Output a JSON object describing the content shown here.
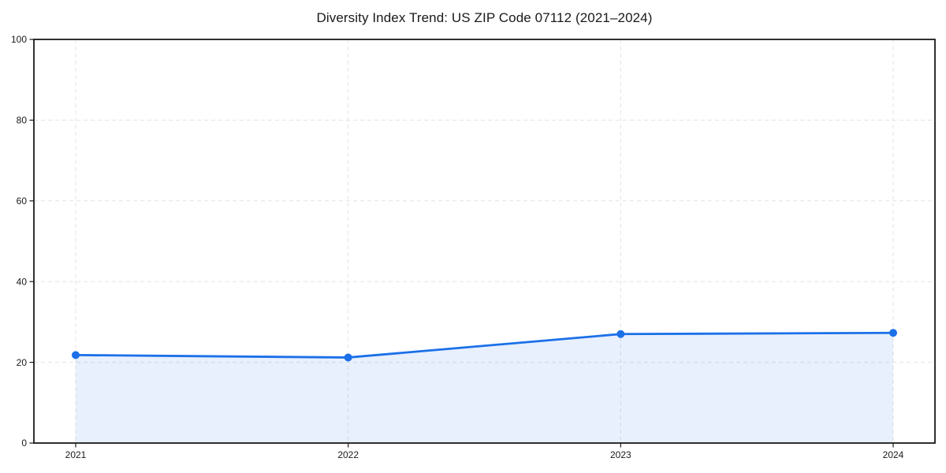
{
  "figure": {
    "background": "#ffffff"
  },
  "chart_data": {
    "type": "line",
    "title": "Diversity Index Trend: US ZIP Code 07112 (2021–2024)",
    "categories": [
      "2021",
      "2022",
      "2023",
      "2024"
    ],
    "series": [
      {
        "name": "Diversity Index",
        "values": [
          21.8,
          21.2,
          27.0,
          27.3
        ]
      }
    ],
    "xlabel": "",
    "ylabel": "",
    "ylim": [
      0,
      100
    ],
    "yticks": [
      0,
      20,
      40,
      60,
      80,
      100
    ],
    "grid": "on",
    "grid_style": "dashed",
    "legend": "none",
    "area_fill": true,
    "markers": true,
    "colors": {
      "line": "#1b70e8",
      "marker": "#1b70e8",
      "fill": "#1b70e8",
      "grid": "#e3e3e3",
      "axis": "#1a1a1a",
      "text": "#1a1a1a",
      "background": "#ffffff"
    },
    "fill_opacity": 0.1
  }
}
